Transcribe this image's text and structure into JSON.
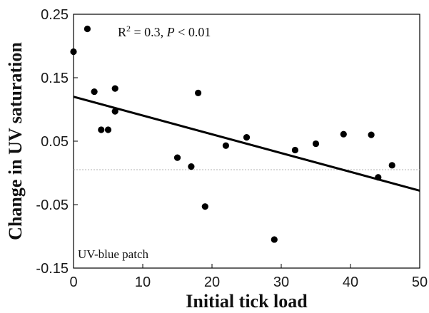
{
  "chart_data": {
    "type": "scatter",
    "xlabel": "Initial tick load",
    "ylabel": "Change in UV saturation",
    "xlim": [
      0,
      50
    ],
    "ylim": [
      -0.15,
      0.25
    ],
    "x_ticks": [
      "0",
      "10",
      "20",
      "30",
      "40",
      "50"
    ],
    "y_ticks": [
      "0.25",
      "0.15",
      "0.05",
      "-0.05",
      "-0.15"
    ],
    "grid": false,
    "annotation": {
      "r2_prefix": "R",
      "r2_sup": "2",
      "r2_value": " = 0.3, ",
      "p_label": "P",
      "p_value": " < 0.01"
    },
    "panel_label": "UV-blue patch",
    "points": [
      {
        "x": 0,
        "y": 0.191
      },
      {
        "x": 2,
        "y": 0.227
      },
      {
        "x": 3,
        "y": 0.128
      },
      {
        "x": 4,
        "y": 0.068
      },
      {
        "x": 5,
        "y": 0.068
      },
      {
        "x": 6,
        "y": 0.133
      },
      {
        "x": 6,
        "y": 0.097
      },
      {
        "x": 15,
        "y": 0.024
      },
      {
        "x": 17,
        "y": 0.01
      },
      {
        "x": 18,
        "y": 0.126
      },
      {
        "x": 19,
        "y": -0.053
      },
      {
        "x": 22,
        "y": 0.043
      },
      {
        "x": 25,
        "y": 0.056
      },
      {
        "x": 29,
        "y": -0.105
      },
      {
        "x": 32,
        "y": 0.036
      },
      {
        "x": 35,
        "y": 0.046
      },
      {
        "x": 39,
        "y": 0.061
      },
      {
        "x": 43,
        "y": 0.06
      },
      {
        "x": 44,
        "y": -0.007
      },
      {
        "x": 46,
        "y": 0.012
      }
    ],
    "fit_line": {
      "x": [
        0,
        50
      ],
      "y": [
        0.12,
        -0.028
      ]
    },
    "reference_line_y": 0.005,
    "colors": {
      "points": "#000000",
      "fit": "#000000",
      "reference": "#b0b0b0"
    }
  }
}
